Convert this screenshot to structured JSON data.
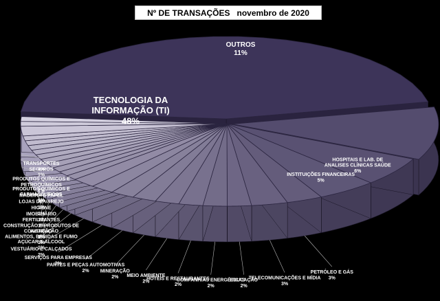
{
  "chart_data": {
    "type": "pie",
    "title": "Nº DE TRANSAÇÕES   novembro de 2020",
    "unit": "%",
    "slices": [
      {
        "label": "TECNOLOGIA DA INFORMAÇÃO (TI)",
        "value": 48,
        "display": "48%"
      },
      {
        "label": "OUTROS",
        "value": 11,
        "display": "11%"
      },
      {
        "label": "HOSPITAIS E LAB. DE ANALISES CLÍNICAS SAÚDE",
        "value": 6,
        "display": "6%"
      },
      {
        "label": "INSTITUIÇÕES FINANCEIRAS",
        "value": 5,
        "display": "5%"
      },
      {
        "label": "PETRÓLEO E GÁS",
        "value": 3,
        "display": "3%"
      },
      {
        "label": "TELECOMUNICAÇÕES E MÍDIA",
        "value": 3,
        "display": "3%"
      },
      {
        "label": "EDUCAÇÃO",
        "value": 2,
        "display": "2%"
      },
      {
        "label": "COMPANHIAS ENERGÉTICAS",
        "value": 2,
        "display": "2%"
      },
      {
        "label": "HOTÉIS E RESTAURANTES",
        "value": 2,
        "display": "2%"
      },
      {
        "label": "MEIO AMBIENTE",
        "value": 2,
        "display": "2%"
      },
      {
        "label": "MINERAÇÃO",
        "value": 2,
        "display": "2%"
      },
      {
        "label": "PARTES E PEÇAS AUTOMOTIVAS",
        "value": 2,
        "display": "2%"
      },
      {
        "label": "SERVIÇOS PARA EMPRESAS",
        "value": 2,
        "display": "2%"
      },
      {
        "label": "VESTUÁRIO E CALÇADOS",
        "value": 2,
        "display": "2%"
      },
      {
        "label": "AÇÚCAR E ÁLCOOL",
        "value": 1,
        "display": "1%"
      },
      {
        "label": "ALIMENTOS, BEBIDAS E FUMO",
        "value": 1,
        "display": "1%"
      },
      {
        "label": "AVIAÇÃO",
        "value": 1,
        "display": "1%"
      },
      {
        "label": "CONSTRUÇÃO E PRODUTOS DE CONSTRUÇÃO",
        "value": 1,
        "display": "1%"
      },
      {
        "label": "FERTILIZANTES",
        "value": 1,
        "display": "1%"
      },
      {
        "label": "IMOBILIÁRIO",
        "value": 1,
        "display": "1%"
      },
      {
        "label": "HIGIENE",
        "value": 1,
        "display": "1%"
      },
      {
        "label": "LOJAS DE VAREJO",
        "value": 1,
        "display": "1%"
      },
      {
        "label": "MADEIRA E PAPEL",
        "value": 1,
        "display": "1%"
      },
      {
        "label": "PRODUTOS QUÍMICOS E FARMACÊUTICOS",
        "value": 1,
        "display": "1%"
      },
      {
        "label": "PRODUTOS QUÍMICOS E PETROQUÍMICOS",
        "value": 2,
        "display": "2%"
      },
      {
        "label": "SEGUROS",
        "value": 1,
        "display": "1%"
      },
      {
        "label": "TRANSPORTES",
        "value": 1,
        "display": "1%"
      }
    ],
    "colors": {
      "top_dark": "#3d3459",
      "top_light": "#d4d0e0",
      "side_dark": "#2a233f",
      "side_light": "#a8a2bd",
      "label": "#ffffff",
      "background": "#000000"
    },
    "style": "3d-exploded-pie"
  }
}
